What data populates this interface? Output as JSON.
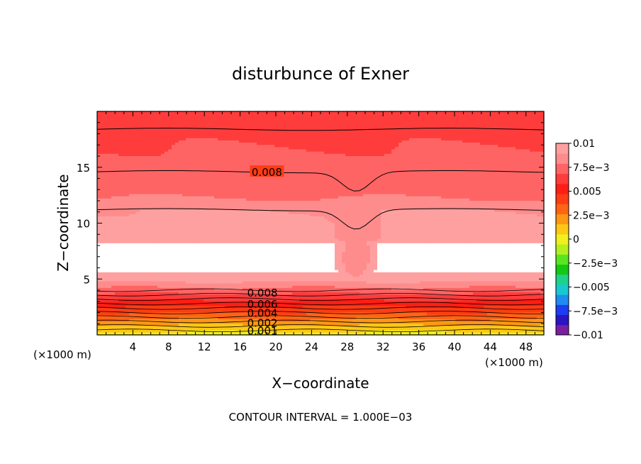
{
  "chart_data": {
    "type": "heatmap",
    "title": "disturbunce of Exner",
    "xlabel": "X−coordinate",
    "ylabel": "Z−coordinate",
    "x_unit": "(×1000 m)",
    "x_unit_left": "(×1000 m)",
    "xlim": [
      0,
      50
    ],
    "ylim": [
      0,
      20
    ],
    "x_ticks": [
      "4",
      "8",
      "12",
      "16",
      "20",
      "24",
      "28",
      "32",
      "36",
      "40",
      "44",
      "48"
    ],
    "y_ticks": [
      "5",
      "10",
      "15"
    ],
    "colorbar": {
      "labels": [
        "0.01",
        "7.5e−3",
        "0.005",
        "2.5e−3",
        "0",
        "−2.5e−3",
        "−0.005",
        "−7.5e−3",
        "−0.01"
      ],
      "range": [
        -0.01,
        0.01
      ],
      "colors": [
        "#7b1fa2",
        "#2a14c4",
        "#1e3cf0",
        "#1e8cf0",
        "#18c8d2",
        "#1ed28c",
        "#14c814",
        "#5ae61e",
        "#b4f01e",
        "#f0f01e",
        "#ffc814",
        "#ff9614",
        "#ff6414",
        "#ff3c14",
        "#ff1e14",
        "#ff3c3c",
        "#ff6464",
        "#ff8c8c",
        "#ffa0a0"
      ]
    },
    "contour_labels": [
      "0.008",
      "0.008",
      "0.006",
      "0.004",
      "0.002",
      "0.001"
    ],
    "contour_interval_text": "CONTOUR INTERVAL = 1.000E−03"
  }
}
